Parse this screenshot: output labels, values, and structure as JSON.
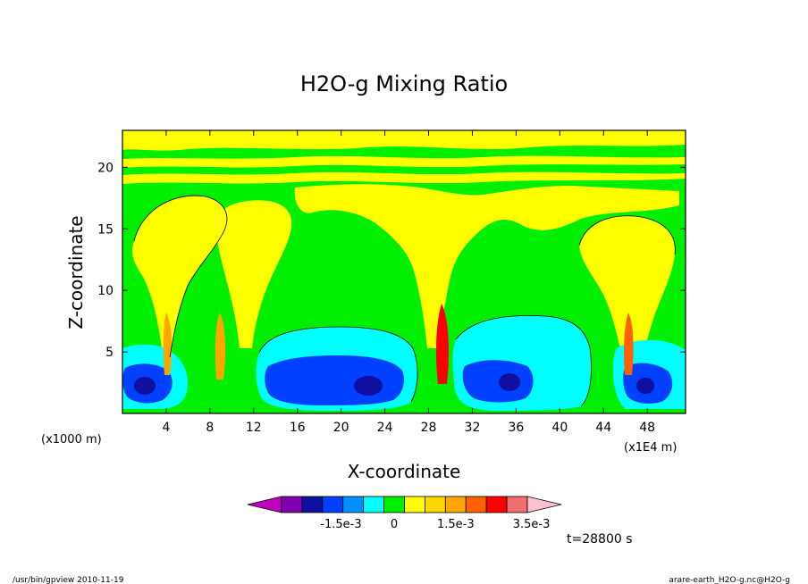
{
  "chart_data": {
    "type": "heatmap",
    "title": "H2O-g Mixing Ratio",
    "xlabel": "X-coordinate",
    "ylabel": "Z-coordinate",
    "x_unit_note": "(x1E4 m)",
    "y_unit_note": "(x1000 m)",
    "xlim": [
      0,
      51.5
    ],
    "ylim": [
      0,
      23
    ],
    "x_ticks": [
      "4",
      "8",
      "12",
      "16",
      "20",
      "24",
      "28",
      "32",
      "36",
      "40",
      "44",
      "48"
    ],
    "y_ticks": [
      "5",
      "10",
      "15",
      "20"
    ],
    "colorbar": {
      "colors": [
        "#c000c0",
        "#8000b0",
        "#1010a0",
        "#0040ff",
        "#0090ff",
        "#00ffff",
        "#00ee00",
        "#ffff00",
        "#ffd700",
        "#ffa500",
        "#ff6000",
        "#ff0000",
        "#f07070",
        "#ffc0d0"
      ],
      "labels": [
        "-1.5e-3",
        "0",
        "1.5e-3",
        "3.5e-3"
      ]
    },
    "time_label": "t=28800 s",
    "anomaly_regions": [
      {
        "level": "negative",
        "x": [
          0,
          5
        ],
        "z": [
          0.5,
          5.5
        ]
      },
      {
        "level": "negative",
        "x": [
          12.5,
          27
        ],
        "z": [
          0.5,
          7
        ]
      },
      {
        "level": "negative",
        "x": [
          30,
          43
        ],
        "z": [
          0.5,
          6.5
        ]
      },
      {
        "level": "negative",
        "x": [
          46,
          51.5
        ],
        "z": [
          0.5,
          6
        ]
      },
      {
        "level": "positive",
        "x": [
          3,
          12
        ],
        "z": [
          4,
          21
        ]
      },
      {
        "level": "positive",
        "x": [
          25,
          33
        ],
        "z": [
          4,
          21
        ]
      },
      {
        "level": "positive",
        "x": [
          41,
          51
        ],
        "z": [
          3,
          16
        ]
      }
    ]
  },
  "footer": {
    "left": "/usr/bin/gpview   2010-11-19",
    "right": "arare-earth_H2O-g.nc@H2O-g"
  }
}
